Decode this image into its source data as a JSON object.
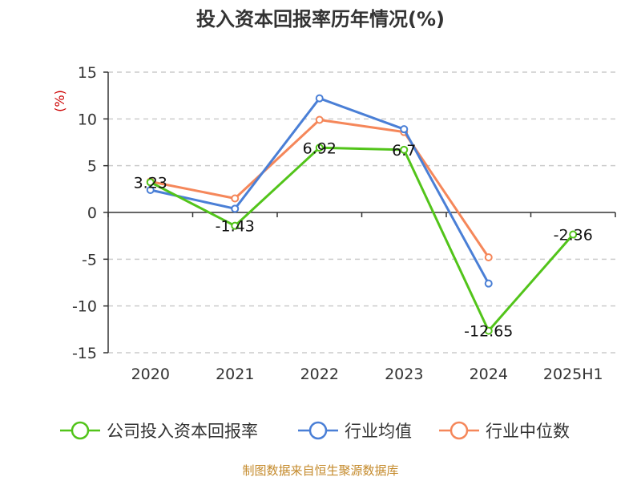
{
  "chart_data": {
    "type": "line",
    "title": "投入资本回报率历年情况(%)",
    "ylabel": "(%)",
    "categories": [
      "2020",
      "2021",
      "2022",
      "2023",
      "2024",
      "2025H1"
    ],
    "ylim": [
      -15,
      15
    ],
    "yticks": [
      15,
      10,
      5,
      0,
      -5,
      -10,
      -15
    ],
    "grid": true,
    "legend_position": "bottom",
    "series": [
      {
        "name": "公司投入资本回报率",
        "color": "#52c41a",
        "values": [
          3.23,
          -1.43,
          6.92,
          6.7,
          -12.65,
          -2.36
        ],
        "labels": [
          "3.23",
          "-1.43",
          "6.92",
          "6.7",
          "-12.65",
          "-2.36"
        ]
      },
      {
        "name": "行业均值",
        "color": "#4a7fd6",
        "values": [
          2.4,
          0.4,
          12.2,
          8.9,
          -7.6,
          null
        ]
      },
      {
        "name": "行业中位数",
        "color": "#f5875a",
        "values": [
          3.3,
          1.5,
          9.9,
          8.6,
          -4.8,
          null
        ]
      }
    ]
  },
  "footer": {
    "source": "制图数据来自恒生聚源数据库"
  }
}
